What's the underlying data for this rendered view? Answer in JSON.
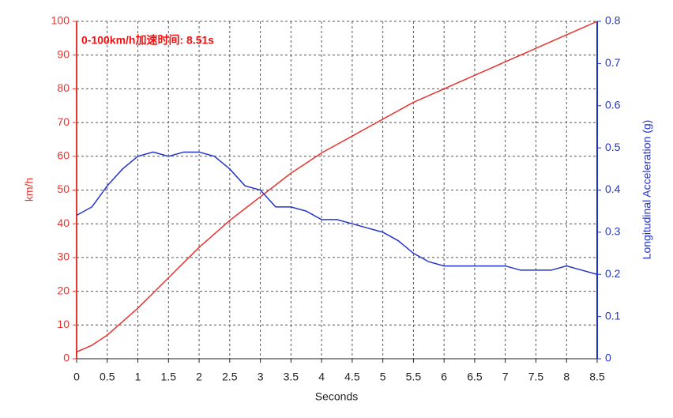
{
  "chart_data": {
    "type": "line",
    "title": "0-100km/h加速时间: 8.51s",
    "xlabel": "Seconds",
    "ylabel": "km/h",
    "y2label": "Longitudinal Acceleration (g)",
    "x": [
      0,
      0.25,
      0.5,
      0.75,
      1,
      1.25,
      1.5,
      1.75,
      2,
      2.25,
      2.5,
      2.75,
      3,
      3.25,
      3.5,
      3.75,
      4,
      4.25,
      4.5,
      4.75,
      5,
      5.25,
      5.5,
      5.75,
      6,
      6.25,
      6.5,
      6.75,
      7,
      7.25,
      7.5,
      7.75,
      8,
      8.25,
      8.5
    ],
    "series": [
      {
        "name": "km/h",
        "color": "#e8332e",
        "axis": "y",
        "values": [
          2,
          4,
          7,
          11,
          15,
          19.5,
          24,
          28.5,
          33,
          37,
          41,
          44.5,
          48,
          51.5,
          55,
          58,
          61,
          63.5,
          66,
          68.5,
          71,
          73.5,
          76,
          78,
          80,
          82,
          84,
          86,
          88,
          90,
          92,
          94,
          96,
          98,
          100
        ]
      },
      {
        "name": "Longitudinal Acceleration (g)",
        "color": "#2233cc",
        "axis": "y2",
        "values": [
          0.34,
          0.36,
          0.41,
          0.45,
          0.48,
          0.49,
          0.48,
          0.49,
          0.49,
          0.48,
          0.45,
          0.41,
          0.4,
          0.36,
          0.36,
          0.35,
          0.33,
          0.33,
          0.32,
          0.31,
          0.3,
          0.28,
          0.25,
          0.23,
          0.22,
          0.22,
          0.22,
          0.22,
          0.22,
          0.21,
          0.21,
          0.21,
          0.22,
          0.21,
          0.2
        ]
      }
    ],
    "xlim": [
      0,
      8.5
    ],
    "xticks": [
      0,
      0.5,
      1,
      1.5,
      2,
      2.5,
      3,
      3.5,
      4,
      4.5,
      5,
      5.5,
      6,
      6.5,
      7,
      7.5,
      8,
      8.5
    ],
    "ylim": [
      0,
      100
    ],
    "yticks": [
      0,
      10,
      20,
      30,
      40,
      50,
      60,
      70,
      80,
      90,
      100
    ],
    "y2lim": [
      0,
      0.8
    ],
    "y2ticks": [
      0,
      0.1,
      0.2,
      0.3,
      0.4,
      0.5,
      0.6,
      0.7,
      0.8
    ],
    "grid": true
  }
}
